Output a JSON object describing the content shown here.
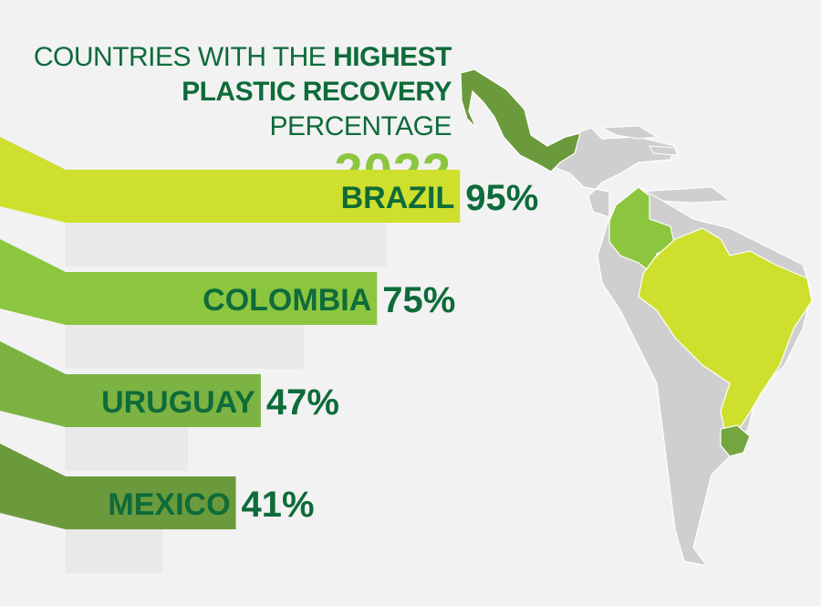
{
  "title": {
    "line1_regular": "COUNTRIES WITH THE ",
    "line1_bold": "HIGHEST",
    "line2_bold": "PLASTIC RECOVERY",
    "line2_regular": " PERCENTAGE",
    "year": "2022"
  },
  "colors": {
    "title_dark_green": "#0e6b3a",
    "title_year_green": "#8cc63f",
    "map_highlight_brazil": "#cfdf2e",
    "map_highlight_colombia": "#8cc63f",
    "map_highlight_uruguay": "#73a640",
    "map_highlight_mexico": "#6b9a3c",
    "map_land": "#cfcfcf"
  },
  "chart_data": {
    "type": "bar",
    "orientation": "horizontal",
    "categories": [
      "BRAZIL",
      "COLOMBIA",
      "URUGUAY",
      "MEXICO"
    ],
    "values": [
      95,
      75,
      47,
      41
    ],
    "value_labels": [
      "95%",
      "75%",
      "47%",
      "41%"
    ],
    "unit": "%",
    "bar_colors": [
      "#cfdf2e",
      "#8cc63f",
      "#7cb342",
      "#6b9a3c"
    ],
    "xlim": [
      0,
      100
    ],
    "grid": false
  }
}
